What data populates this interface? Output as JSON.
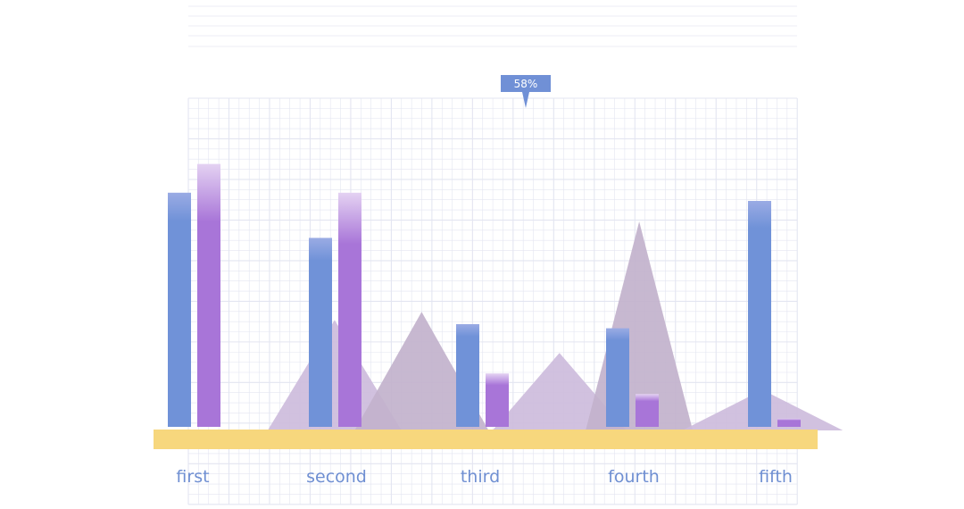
{
  "chart_data": {
    "type": "bar",
    "categories": [
      "first",
      "second",
      "third",
      "fourth",
      "fifth"
    ],
    "series": [
      {
        "values": [
          57,
          46,
          25,
          24,
          55
        ]
      },
      {
        "values": [
          64,
          57,
          13,
          8,
          2
        ]
      }
    ],
    "triangles": [
      {
        "x": 2.15,
        "height": 26
      },
      {
        "x": 2.75,
        "height": 28
      },
      {
        "x": 3.7,
        "height": 18
      },
      {
        "x": 4.25,
        "height": 50
      },
      {
        "x": 5.1,
        "height": 9
      }
    ],
    "ylim": [
      0,
      80
    ],
    "grid": true,
    "tooltip": {
      "text": "58%",
      "value": 58,
      "x": 3.55
    },
    "colors": {
      "series_a": "#7092d8",
      "series_b": "#a875d8",
      "triangle_light": "#cdbcdc",
      "triangle_dark": "#c2b2cc",
      "baseline": "#f7d77d",
      "label": "#6f8fd2",
      "grid": "#e3e5f1",
      "tooltip_bg": "#7090d6"
    }
  }
}
